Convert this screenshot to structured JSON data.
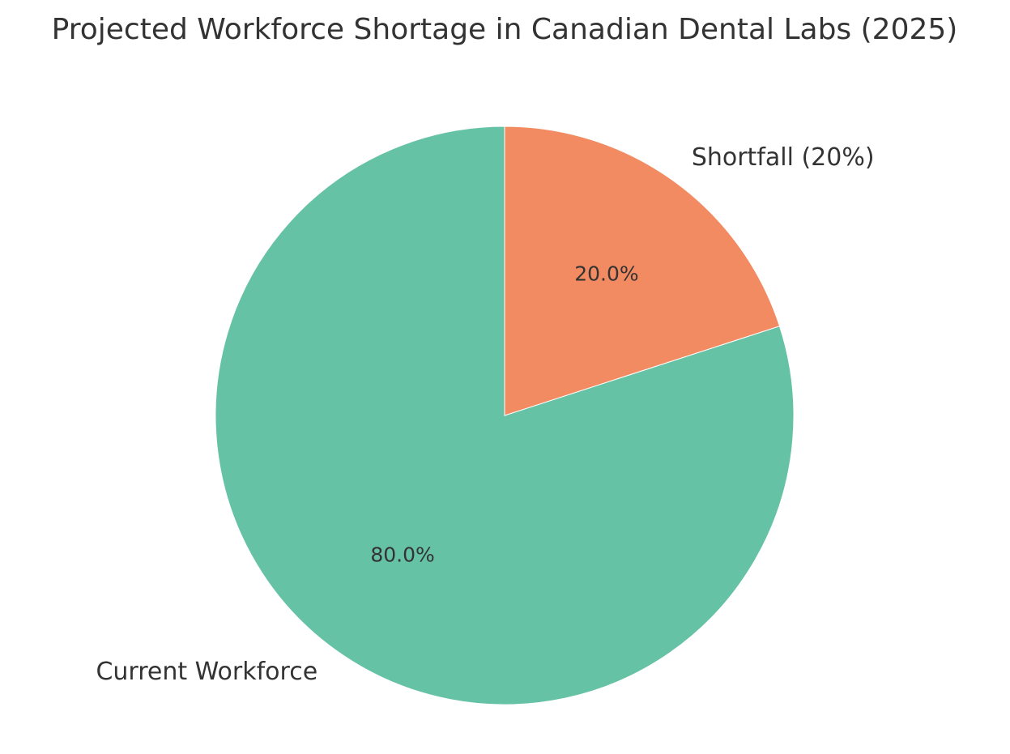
{
  "chart_data": {
    "type": "pie",
    "title": "Projected Workforce Shortage in Canadian Dental Labs (2025)",
    "categories": [
      "Current Workforce",
      "Shortfall (20%)"
    ],
    "values": [
      80,
      20
    ],
    "value_labels": [
      "80.0%",
      "20.0%"
    ],
    "colors": [
      "#66c2a5",
      "#f28b62"
    ]
  }
}
